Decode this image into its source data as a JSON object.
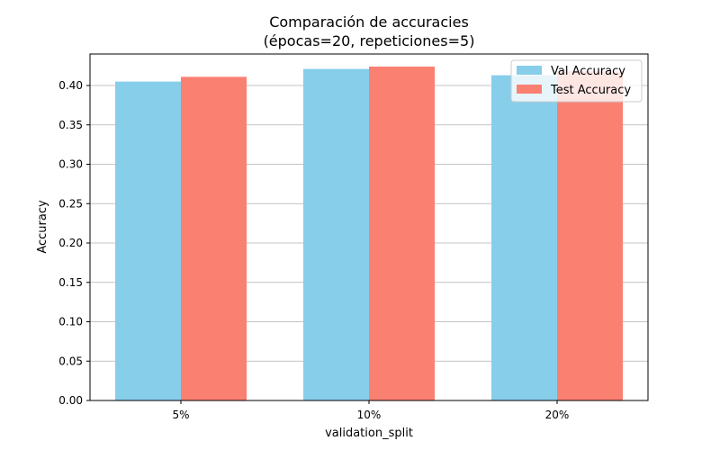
{
  "chart_data": {
    "type": "bar",
    "title": "Comparación de accuracies",
    "subtitle": "(épocas=20, repeticiones=5)",
    "xlabel": "validation_split",
    "ylabel": "Accuracy",
    "categories": [
      "5%",
      "10%",
      "20%"
    ],
    "series": [
      {
        "name": "Val Accuracy",
        "color": "#87ceeb",
        "values": [
          0.405,
          0.421,
          0.413
        ]
      },
      {
        "name": "Test Accuracy",
        "color": "#fa8072",
        "values": [
          0.411,
          0.424,
          0.418
        ]
      }
    ],
    "ylim": [
      0,
      0.44
    ],
    "yticks": [
      "0.00",
      "0.05",
      "0.10",
      "0.15",
      "0.20",
      "0.25",
      "0.30",
      "0.35",
      "0.40"
    ],
    "grid": "horizontal",
    "legend_position": "top-right"
  }
}
